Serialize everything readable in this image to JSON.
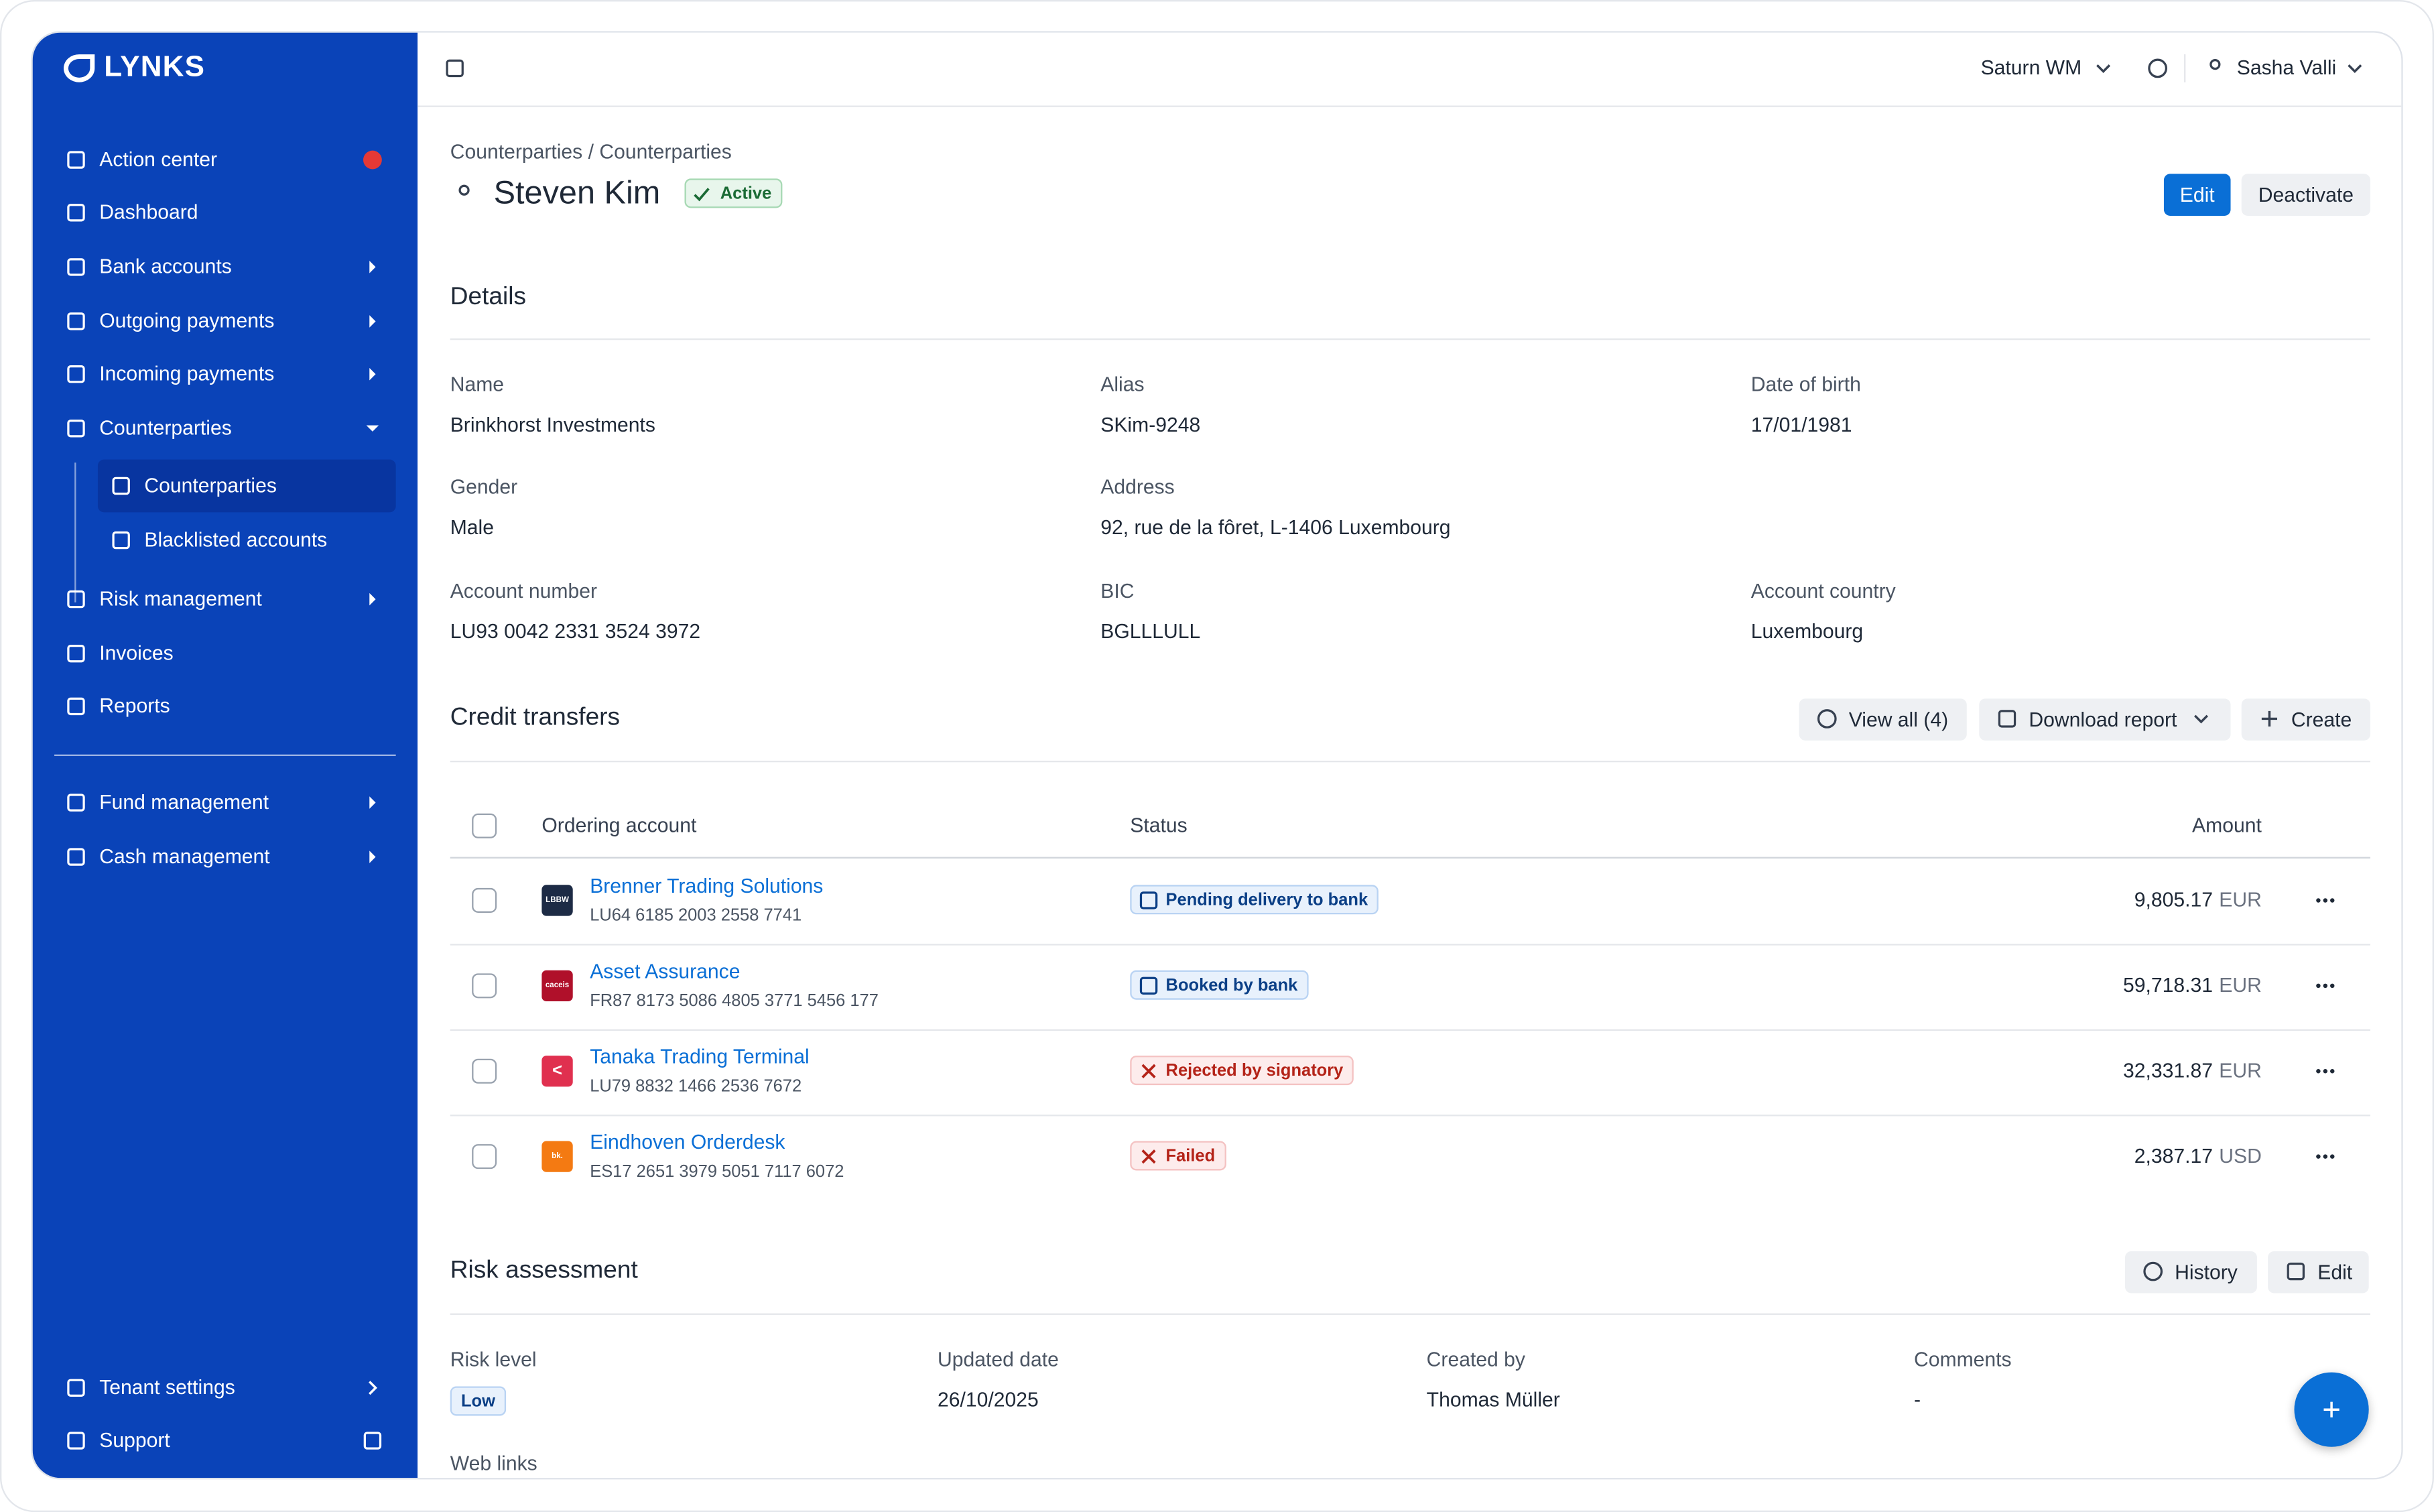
{
  "brand": "LYNKS",
  "header": {
    "workspace": "Saturn WM",
    "user": "Sasha Valli"
  },
  "sidebar": {
    "nav": [
      {
        "label": "Action center",
        "alert": true
      },
      {
        "label": "Dashboard"
      },
      {
        "label": "Bank accounts",
        "expandable": true
      },
      {
        "label": "Outgoing payments",
        "expandable": true
      },
      {
        "label": "Incoming payments",
        "expandable": true
      },
      {
        "label": "Counterparties",
        "expanded": true
      }
    ],
    "sub": [
      {
        "label": "Counterparties",
        "active": true
      },
      {
        "label": "Blacklisted accounts"
      }
    ],
    "nav2": [
      {
        "label": "Risk management",
        "expandable": true
      },
      {
        "label": "Invoices"
      },
      {
        "label": "Reports"
      }
    ],
    "nav3": [
      {
        "label": "Fund management",
        "expandable": true
      },
      {
        "label": "Cash management",
        "expandable": true
      }
    ],
    "footer": [
      {
        "label": "Tenant settings"
      },
      {
        "label": "Support"
      }
    ]
  },
  "page": {
    "breadcrumb": "Counterparties / Counterparties",
    "title": "Steven Kim",
    "status": "Active",
    "actions": [
      "Edit",
      "Deactivate"
    ]
  },
  "details": {
    "title": "Details",
    "fields": [
      {
        "label": "Name",
        "value": "Brinkhorst Investments"
      },
      {
        "label": "Alias",
        "value": "SKim-9248"
      },
      {
        "label": "Date of birth",
        "value": "17/01/1981"
      },
      {
        "label": "Gender",
        "value": "Male"
      },
      {
        "label": "Address",
        "value": "92, rue de la fôret, L-1406 Luxembourg"
      },
      null,
      {
        "label": "Account number",
        "value": "LU93 0042 2331 3524 3972"
      },
      {
        "label": "BIC",
        "value": "BGLLLULL"
      },
      {
        "label": "Account country",
        "value": "Luxembourg"
      }
    ]
  },
  "credit_transfers": {
    "title": "Credit transfers",
    "actions": [
      "View all (4)",
      "Download report",
      "Create"
    ],
    "columns": [
      "Ordering account",
      "Status",
      "Amount"
    ],
    "rows": [
      {
        "logo": "LBBW",
        "logo_color": "#1d2b45",
        "name": "Brenner Trading Solutions",
        "iban": "LU64 6185 2003 2558 7741",
        "status": "Pending delivery to bank",
        "tone": "info",
        "amount": "9,805.17",
        "currency": "EUR"
      },
      {
        "logo": "caceis",
        "logo_color": "#b0102a",
        "name": "Asset Assurance",
        "iban": "FR87 8173 5086 4805 3771 5456 177",
        "status": "Booked by bank",
        "tone": "info",
        "amount": "59,718.31",
        "currency": "EUR"
      },
      {
        "logo": "<",
        "logo_color": "#e0304f",
        "name": "Tanaka Trading Terminal",
        "iban": "LU79 8832 1466 2536 7672",
        "status": "Rejected by signatory",
        "tone": "error",
        "amount": "32,331.87",
        "currency": "EUR"
      },
      {
        "logo": "bk.",
        "logo_color": "#f47a12",
        "name": "Eindhoven Orderdesk",
        "iban": "ES17 2651 3979 5051 7117 6072",
        "status": "Failed",
        "tone": "error",
        "amount": "2,387.17",
        "currency": "USD"
      }
    ]
  },
  "risk": {
    "title": "Risk assessment",
    "actions": [
      "History",
      "Edit"
    ],
    "fields": [
      {
        "label": "Risk level",
        "value": "Low"
      },
      {
        "label": "Updated date",
        "value": "26/10/2025"
      },
      {
        "label": "Created by",
        "value": "Thomas Müller"
      },
      {
        "label": "Comments",
        "value": "-"
      }
    ],
    "web_links": "Web links"
  }
}
